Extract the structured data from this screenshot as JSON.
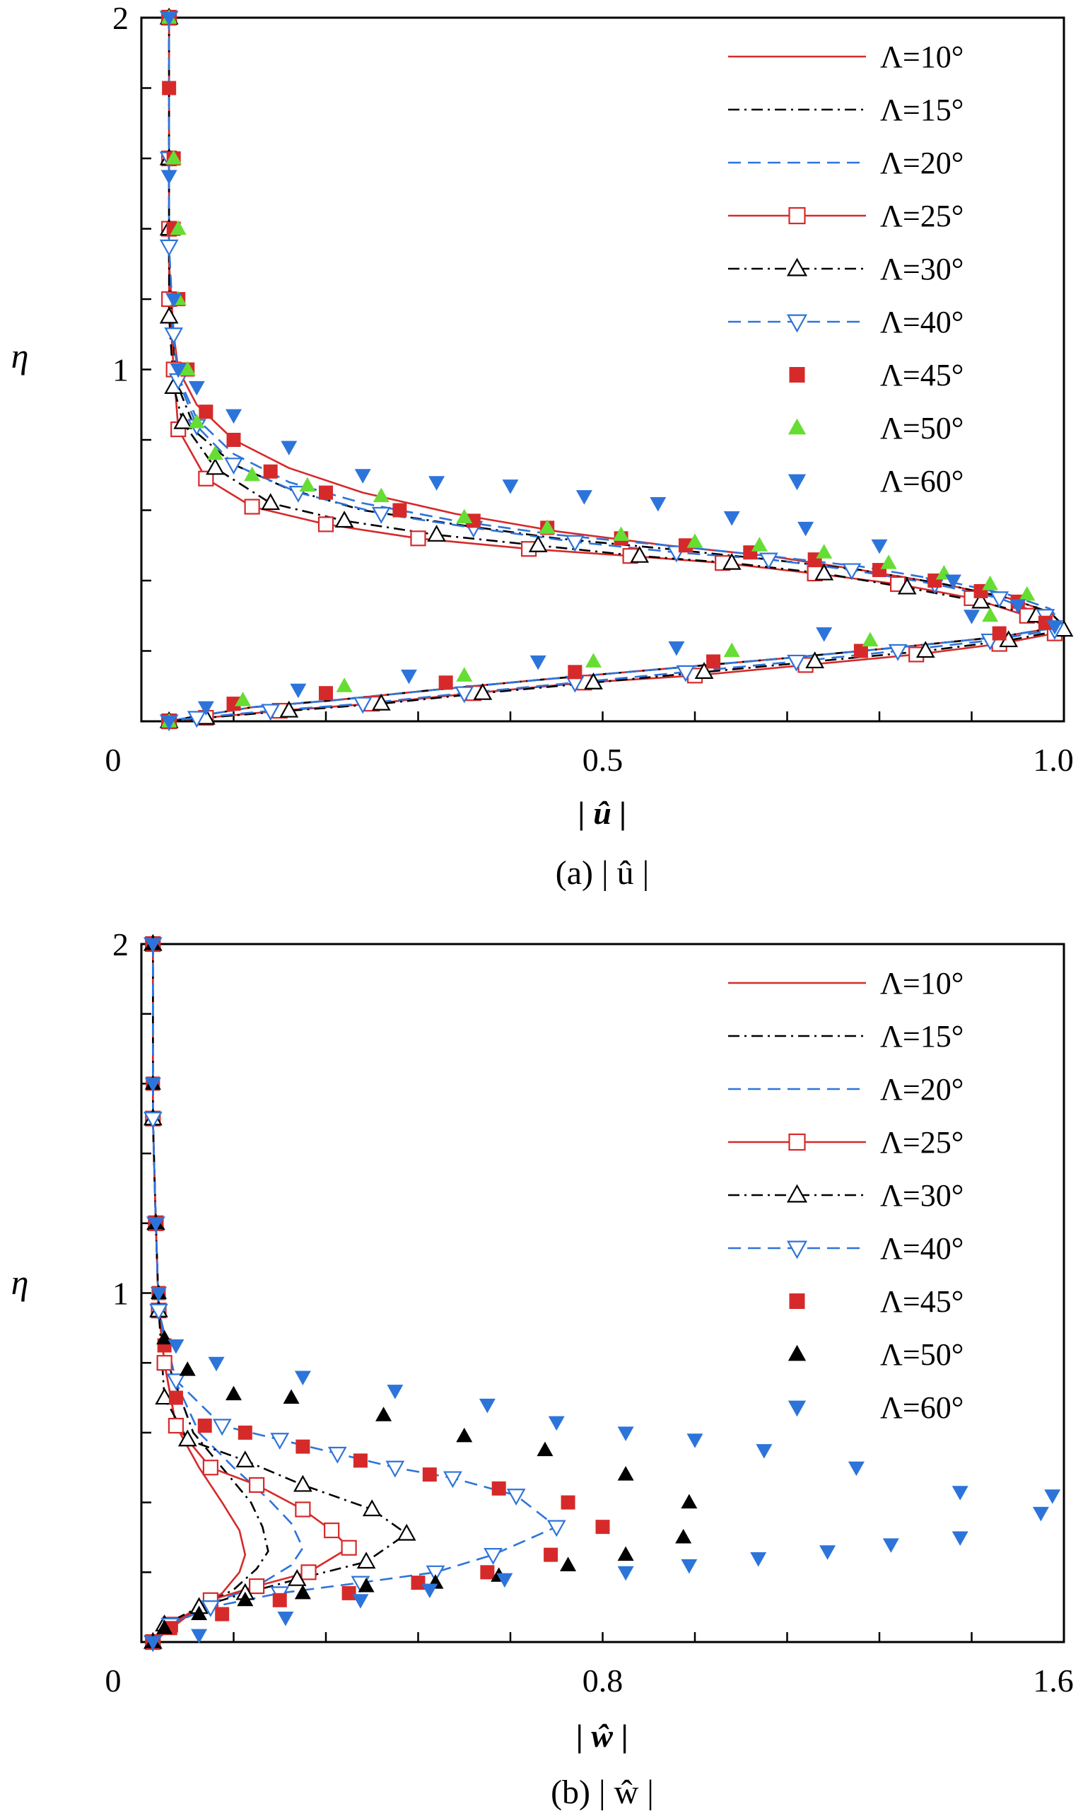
{
  "figure": {
    "caption_a": "(a) | û |",
    "caption_b": "(b) | ŵ |"
  },
  "chart_data": [
    {
      "type": "line",
      "title": "",
      "xlabel": "| û |",
      "ylabel": "η",
      "xlim": [
        0,
        1.0
      ],
      "ylim": [
        0,
        2
      ],
      "xticks": [
        0,
        0.5,
        1.0
      ],
      "xtick_labels": [
        "0",
        "0.5",
        "1.0"
      ],
      "yticks": [
        1,
        2
      ],
      "ytick_labels": [
        "1",
        "2"
      ],
      "legend_position": "top-right",
      "series": [
        {
          "name": "Λ=10°",
          "color": "#d62a2a",
          "style": "solid",
          "marker": "none",
          "x": [
            0.03,
            0.03,
            0.03,
            0.035,
            0.04,
            0.06,
            0.1,
            0.16,
            0.24,
            0.34,
            0.45,
            0.57,
            0.68,
            0.78,
            0.87,
            0.94,
            0.985,
            1.0,
            0.93,
            0.82,
            0.7,
            0.57,
            0.44,
            0.32,
            0.21,
            0.12,
            0.05,
            0.03
          ],
          "y": [
            2.0,
            1.6,
            1.3,
            1.1,
            1.0,
            0.9,
            0.8,
            0.72,
            0.65,
            0.59,
            0.54,
            0.5,
            0.47,
            0.43,
            0.39,
            0.35,
            0.31,
            0.27,
            0.24,
            0.21,
            0.18,
            0.15,
            0.12,
            0.09,
            0.06,
            0.04,
            0.01,
            0.0
          ]
        },
        {
          "name": "Λ=15°",
          "color": "#000000",
          "style": "dashdot",
          "marker": "none",
          "x": [
            0.03,
            0.03,
            0.03,
            0.035,
            0.04,
            0.06,
            0.1,
            0.16,
            0.24,
            0.34,
            0.45,
            0.57,
            0.68,
            0.78,
            0.87,
            0.94,
            0.985,
            1.0,
            0.93,
            0.82,
            0.7,
            0.57,
            0.44,
            0.32,
            0.21,
            0.12,
            0.05,
            0.03
          ],
          "y": [
            2.0,
            1.6,
            1.3,
            1.05,
            0.95,
            0.82,
            0.73,
            0.66,
            0.6,
            0.56,
            0.52,
            0.49,
            0.46,
            0.43,
            0.39,
            0.35,
            0.31,
            0.27,
            0.24,
            0.21,
            0.18,
            0.15,
            0.12,
            0.09,
            0.06,
            0.04,
            0.01,
            0.0
          ]
        },
        {
          "name": "Λ=20°",
          "color": "#2d74da",
          "style": "dashed",
          "marker": "none",
          "x": [
            0.03,
            0.03,
            0.03,
            0.035,
            0.04,
            0.06,
            0.1,
            0.16,
            0.24,
            0.34,
            0.45,
            0.57,
            0.68,
            0.78,
            0.87,
            0.94,
            0.985,
            1.0,
            0.93,
            0.82,
            0.7,
            0.57,
            0.44,
            0.32,
            0.21,
            0.12,
            0.05,
            0.03
          ],
          "y": [
            2.0,
            1.6,
            1.3,
            1.08,
            0.98,
            0.86,
            0.76,
            0.68,
            0.62,
            0.57,
            0.53,
            0.5,
            0.47,
            0.44,
            0.4,
            0.36,
            0.32,
            0.27,
            0.24,
            0.21,
            0.18,
            0.15,
            0.12,
            0.09,
            0.06,
            0.04,
            0.01,
            0.0
          ]
        },
        {
          "name": "Λ=25°",
          "color": "#d62a2a",
          "style": "solid",
          "marker": "square-open",
          "x": [
            0.03,
            0.03,
            0.03,
            0.03,
            0.035,
            0.04,
            0.07,
            0.12,
            0.2,
            0.3,
            0.42,
            0.53,
            0.63,
            0.73,
            0.82,
            0.9,
            0.96,
            0.99,
            0.93,
            0.84,
            0.72,
            0.6,
            0.48,
            0.36,
            0.25,
            0.15,
            0.07,
            0.03
          ],
          "y": [
            2.0,
            1.6,
            1.4,
            1.2,
            1.0,
            0.83,
            0.69,
            0.61,
            0.56,
            0.52,
            0.49,
            0.47,
            0.45,
            0.42,
            0.39,
            0.35,
            0.3,
            0.25,
            0.22,
            0.19,
            0.16,
            0.13,
            0.11,
            0.08,
            0.05,
            0.03,
            0.01,
            0.0
          ]
        },
        {
          "name": "Λ=30°",
          "color": "#000000",
          "style": "dashdot",
          "marker": "triangle-up-open",
          "x": [
            0.03,
            0.03,
            0.03,
            0.03,
            0.035,
            0.045,
            0.08,
            0.14,
            0.22,
            0.32,
            0.43,
            0.54,
            0.64,
            0.74,
            0.83,
            0.91,
            0.97,
            1.0,
            0.94,
            0.85,
            0.73,
            0.61,
            0.49,
            0.37,
            0.26,
            0.16,
            0.07,
            0.03
          ],
          "y": [
            2.0,
            1.6,
            1.4,
            1.15,
            0.95,
            0.85,
            0.72,
            0.62,
            0.57,
            0.53,
            0.5,
            0.47,
            0.45,
            0.42,
            0.38,
            0.34,
            0.3,
            0.26,
            0.23,
            0.2,
            0.17,
            0.14,
            0.11,
            0.08,
            0.05,
            0.03,
            0.01,
            0.0
          ]
        },
        {
          "name": "Λ=40°",
          "color": "#2d74da",
          "style": "dashed",
          "marker": "triangle-down-open",
          "x": [
            0.03,
            0.03,
            0.03,
            0.035,
            0.04,
            0.06,
            0.1,
            0.17,
            0.26,
            0.36,
            0.47,
            0.58,
            0.68,
            0.77,
            0.86,
            0.93,
            0.98,
            0.99,
            0.92,
            0.82,
            0.71,
            0.59,
            0.47,
            0.35,
            0.24,
            0.14,
            0.06,
            0.03
          ],
          "y": [
            2.0,
            1.6,
            1.35,
            1.1,
            0.97,
            0.84,
            0.73,
            0.65,
            0.59,
            0.55,
            0.51,
            0.48,
            0.46,
            0.43,
            0.39,
            0.35,
            0.3,
            0.26,
            0.23,
            0.2,
            0.17,
            0.14,
            0.11,
            0.08,
            0.05,
            0.03,
            0.01,
            0.0
          ]
        },
        {
          "name": "Λ=45°",
          "color": "#d62a2a",
          "style": "none",
          "marker": "square-filled",
          "x": [
            0.03,
            0.03,
            0.035,
            0.035,
            0.04,
            0.05,
            0.07,
            0.1,
            0.14,
            0.2,
            0.28,
            0.36,
            0.44,
            0.52,
            0.59,
            0.66,
            0.73,
            0.8,
            0.86,
            0.91,
            0.95,
            0.98,
            0.93,
            0.78,
            0.62,
            0.47,
            0.33,
            0.2,
            0.1,
            0.03
          ],
          "y": [
            2.0,
            1.8,
            1.6,
            1.4,
            1.2,
            1.0,
            0.88,
            0.8,
            0.71,
            0.65,
            0.6,
            0.57,
            0.55,
            0.52,
            0.5,
            0.48,
            0.46,
            0.43,
            0.4,
            0.37,
            0.34,
            0.28,
            0.25,
            0.2,
            0.17,
            0.14,
            0.11,
            0.08,
            0.05,
            0.0
          ]
        },
        {
          "name": "Λ=50°",
          "color": "#66dd33",
          "style": "none",
          "marker": "triangle-up-filled",
          "x": [
            0.03,
            0.035,
            0.04,
            0.04,
            0.05,
            0.06,
            0.08,
            0.12,
            0.18,
            0.26,
            0.35,
            0.44,
            0.52,
            0.6,
            0.67,
            0.74,
            0.81,
            0.87,
            0.92,
            0.96,
            0.92,
            0.79,
            0.64,
            0.49,
            0.35,
            0.22,
            0.11,
            0.03
          ],
          "y": [
            2.0,
            1.6,
            1.4,
            1.2,
            1.0,
            0.85,
            0.76,
            0.7,
            0.67,
            0.64,
            0.58,
            0.55,
            0.53,
            0.51,
            0.5,
            0.48,
            0.45,
            0.42,
            0.39,
            0.36,
            0.3,
            0.23,
            0.2,
            0.17,
            0.13,
            0.1,
            0.06,
            0.0
          ]
        },
        {
          "name": "Λ=60°",
          "color": "#2d74da",
          "style": "none",
          "marker": "triangle-down-filled",
          "x": [
            0.03,
            0.03,
            0.035,
            0.04,
            0.06,
            0.1,
            0.16,
            0.24,
            0.32,
            0.4,
            0.48,
            0.56,
            0.64,
            0.72,
            0.8,
            0.88,
            0.95,
            0.99,
            0.9,
            0.74,
            0.58,
            0.43,
            0.29,
            0.17,
            0.07,
            0.03
          ],
          "y": [
            2.0,
            1.55,
            1.2,
            1.0,
            0.95,
            0.87,
            0.78,
            0.7,
            0.68,
            0.67,
            0.64,
            0.62,
            0.58,
            0.55,
            0.5,
            0.4,
            0.33,
            0.27,
            0.3,
            0.25,
            0.21,
            0.17,
            0.13,
            0.09,
            0.04,
            0.0
          ]
        }
      ]
    },
    {
      "type": "line",
      "title": "",
      "xlabel": "| ŵ |",
      "ylabel": "η",
      "xlim": [
        0,
        1.6
      ],
      "ylim": [
        0,
        2
      ],
      "xticks": [
        0,
        0.8,
        1.6
      ],
      "xtick_labels": [
        "0",
        "0.8",
        "1.6"
      ],
      "yticks": [
        1,
        2
      ],
      "ytick_labels": [
        "1",
        "2"
      ],
      "legend_position": "top-right",
      "series": [
        {
          "name": "Λ=10°",
          "color": "#d62a2a",
          "style": "solid",
          "marker": "none",
          "x": [
            0.02,
            0.02,
            0.025,
            0.03,
            0.04,
            0.06,
            0.1,
            0.14,
            0.17,
            0.18,
            0.17,
            0.14,
            0.1,
            0.06,
            0.02
          ],
          "y": [
            2.0,
            1.5,
            1.2,
            0.95,
            0.8,
            0.62,
            0.5,
            0.4,
            0.32,
            0.25,
            0.2,
            0.14,
            0.1,
            0.05,
            0.0
          ]
        },
        {
          "name": "Λ=15°",
          "color": "#000000",
          "style": "dashdot",
          "marker": "none",
          "x": [
            0.02,
            0.02,
            0.025,
            0.03,
            0.05,
            0.09,
            0.14,
            0.19,
            0.21,
            0.22,
            0.2,
            0.16,
            0.1,
            0.04,
            0.02
          ],
          "y": [
            2.0,
            1.5,
            1.2,
            0.95,
            0.78,
            0.6,
            0.5,
            0.4,
            0.33,
            0.26,
            0.21,
            0.15,
            0.1,
            0.04,
            0.0
          ]
        },
        {
          "name": "Λ=20°",
          "color": "#2d74da",
          "style": "dashed",
          "marker": "none",
          "x": [
            0.02,
            0.02,
            0.025,
            0.03,
            0.05,
            0.1,
            0.16,
            0.22,
            0.26,
            0.28,
            0.26,
            0.2,
            0.12,
            0.05,
            0.02
          ],
          "y": [
            2.0,
            1.5,
            1.2,
            0.95,
            0.78,
            0.6,
            0.5,
            0.41,
            0.34,
            0.27,
            0.22,
            0.16,
            0.11,
            0.05,
            0.0
          ]
        },
        {
          "name": "Λ=25°",
          "color": "#d62a2a",
          "style": "solid",
          "marker": "square-open",
          "x": [
            0.02,
            0.02,
            0.025,
            0.03,
            0.04,
            0.06,
            0.12,
            0.2,
            0.28,
            0.33,
            0.36,
            0.29,
            0.2,
            0.12,
            0.05,
            0.02
          ],
          "y": [
            2.0,
            1.5,
            1.2,
            0.95,
            0.8,
            0.62,
            0.5,
            0.45,
            0.38,
            0.32,
            0.27,
            0.2,
            0.16,
            0.12,
            0.05,
            0.0
          ]
        },
        {
          "name": "Λ=30°",
          "color": "#000000",
          "style": "dashdot",
          "marker": "triangle-up-open",
          "x": [
            0.02,
            0.02,
            0.025,
            0.03,
            0.04,
            0.08,
            0.18,
            0.28,
            0.4,
            0.46,
            0.39,
            0.27,
            0.18,
            0.1,
            0.04,
            0.02
          ],
          "y": [
            2.0,
            1.5,
            1.2,
            0.95,
            0.7,
            0.58,
            0.52,
            0.45,
            0.38,
            0.31,
            0.23,
            0.18,
            0.14,
            0.1,
            0.05,
            0.0
          ]
        },
        {
          "name": "Λ=40°",
          "color": "#2d74da",
          "style": "dashed",
          "marker": "triangle-down-open",
          "x": [
            0.02,
            0.02,
            0.025,
            0.03,
            0.06,
            0.14,
            0.24,
            0.34,
            0.44,
            0.54,
            0.65,
            0.72,
            0.61,
            0.51,
            0.38,
            0.24,
            0.12,
            0.05,
            0.02
          ],
          "y": [
            2.0,
            1.5,
            1.2,
            0.95,
            0.75,
            0.62,
            0.58,
            0.54,
            0.5,
            0.47,
            0.42,
            0.33,
            0.25,
            0.2,
            0.17,
            0.14,
            0.1,
            0.05,
            0.0
          ]
        },
        {
          "name": "Λ=45°",
          "color": "#d62a2a",
          "style": "none",
          "marker": "square-filled",
          "x": [
            0.02,
            0.02,
            0.025,
            0.03,
            0.04,
            0.06,
            0.11,
            0.18,
            0.28,
            0.38,
            0.5,
            0.62,
            0.74,
            0.8,
            0.71,
            0.6,
            0.48,
            0.36,
            0.24,
            0.14,
            0.05,
            0.02
          ],
          "y": [
            2.0,
            1.6,
            1.2,
            1.0,
            0.85,
            0.7,
            0.62,
            0.6,
            0.56,
            0.52,
            0.48,
            0.44,
            0.4,
            0.33,
            0.25,
            0.2,
            0.17,
            0.14,
            0.12,
            0.08,
            0.04,
            0.0
          ]
        },
        {
          "name": "Λ=50°",
          "color": "#000000",
          "style": "none",
          "marker": "triangle-up-filled",
          "x": [
            0.02,
            0.02,
            0.025,
            0.03,
            0.04,
            0.08,
            0.16,
            0.26,
            0.42,
            0.56,
            0.7,
            0.84,
            0.95,
            0.94,
            0.84,
            0.74,
            0.62,
            0.51,
            0.39,
            0.28,
            0.18,
            0.1,
            0.04,
            0.02
          ],
          "y": [
            2.0,
            1.6,
            1.2,
            1.0,
            0.87,
            0.78,
            0.71,
            0.7,
            0.65,
            0.59,
            0.55,
            0.48,
            0.4,
            0.3,
            0.25,
            0.22,
            0.19,
            0.17,
            0.16,
            0.14,
            0.12,
            0.08,
            0.04,
            0.0
          ]
        },
        {
          "name": "Λ=60°",
          "color": "#2d74da",
          "style": "none",
          "marker": "triangle-down-filled",
          "x": [
            0.02,
            0.02,
            0.025,
            0.03,
            0.06,
            0.13,
            0.28,
            0.44,
            0.6,
            0.72,
            0.84,
            0.96,
            1.08,
            1.24,
            1.42,
            1.58,
            1.56,
            1.42,
            1.3,
            1.19,
            1.07,
            0.95,
            0.84,
            0.63,
            0.5,
            0.38,
            0.25,
            0.1,
            0.02
          ],
          "y": [
            2.0,
            1.6,
            1.2,
            1.0,
            0.85,
            0.8,
            0.76,
            0.72,
            0.68,
            0.63,
            0.6,
            0.58,
            0.55,
            0.5,
            0.43,
            0.42,
            0.37,
            0.3,
            0.28,
            0.26,
            0.24,
            0.22,
            0.2,
            0.18,
            0.15,
            0.12,
            0.07,
            0.02,
            0.0
          ]
        }
      ]
    }
  ]
}
